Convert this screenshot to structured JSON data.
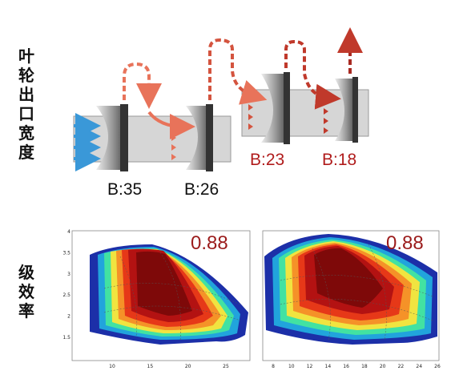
{
  "side_labels": {
    "impeller_outlet_width": "叶轮出口宽度",
    "stage_efficiency": "级效率"
  },
  "stages": [
    {
      "label": "B:35",
      "color": "#111111"
    },
    {
      "label": "B:26",
      "color": "#111111"
    },
    {
      "label": "B:23",
      "color": "#b01c1c"
    },
    {
      "label": "B:18",
      "color": "#b01c1c"
    }
  ],
  "maps": [
    {
      "efficiency_label": "0.88",
      "x_ticks": [
        "10",
        "15",
        "20",
        "25"
      ],
      "y_ticks": [
        "4",
        "3.5",
        "3",
        "2.5",
        "2",
        "1.5"
      ]
    },
    {
      "efficiency_label": "0.88",
      "x_ticks": [
        "8",
        "10",
        "12",
        "14",
        "16",
        "18",
        "20",
        "22",
        "24",
        "26"
      ],
      "y_ticks": []
    }
  ],
  "colors": {
    "inlet_arrow": "#3a98d8",
    "flow_arrow_light": "#e8735a",
    "flow_arrow_dark": "#c0392b",
    "housing": "#d6d6d6"
  }
}
